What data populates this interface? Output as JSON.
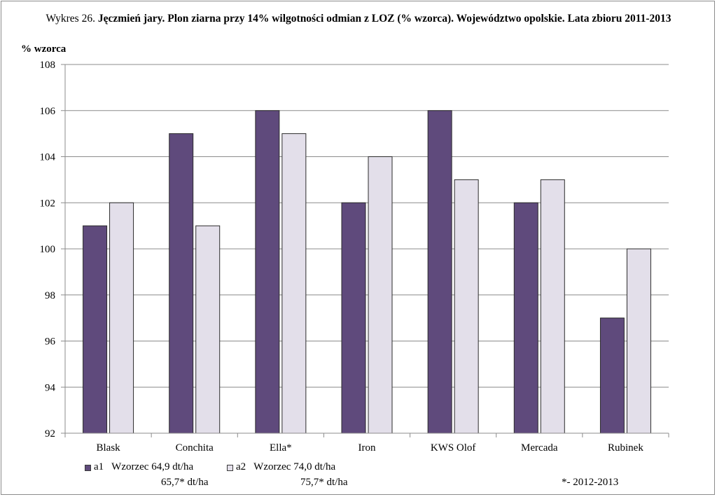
{
  "chart_data": {
    "type": "bar",
    "title_prefix": "Wykres 26.",
    "title": "Jęczmień jary. Plon ziarna przy 14% wilgotności odmian z LOZ (% wzorca). Województwo opolskie. Lata zbioru 2011-2013",
    "ylabel": "% wzorca",
    "ylim": [
      92,
      108
    ],
    "yticks": [
      "92",
      "94",
      "96",
      "98",
      "100",
      "102",
      "104",
      "106",
      "108"
    ],
    "categories": [
      "Blask",
      "Conchita",
      "Ella*",
      "Iron",
      "KWS Olof",
      "Mercada",
      "Rubinek"
    ],
    "series": [
      {
        "name": "a1",
        "values": [
          101,
          105,
          106,
          102,
          106,
          102,
          97
        ],
        "color": "#5f4a7c"
      },
      {
        "name": "a2",
        "values": [
          102,
          101,
          105,
          104,
          103,
          103,
          100
        ],
        "color": "#e3dfea"
      }
    ],
    "grid": true,
    "legend_position": "bottom-left"
  },
  "legend": {
    "a1": {
      "label": "a1",
      "line1": "Wzorzec 64,9 dt/ha",
      "line2": "65,7* dt/ha"
    },
    "a2": {
      "label": "a2",
      "line1": "Wzorzec 74,0 dt/ha",
      "line2": "75,7* dt/ha"
    }
  },
  "footnote": "*- 2012-2013"
}
